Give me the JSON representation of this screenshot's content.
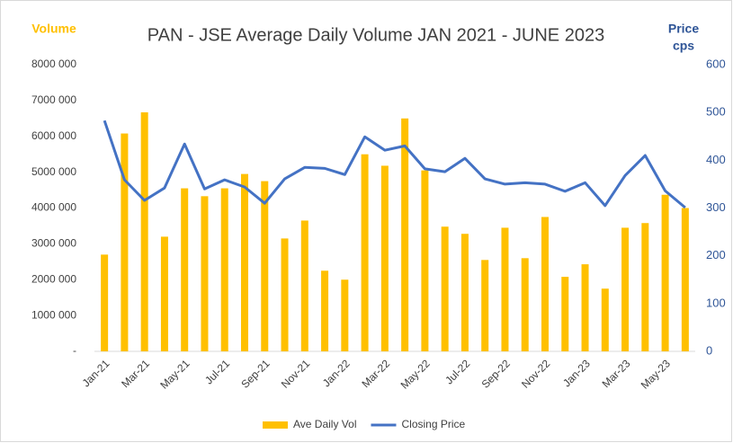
{
  "chart_data": {
    "type": "bar_line",
    "title": "PAN - JSE Average Daily Volume JAN 2021 - JUNE 2023",
    "y_label": "Volume",
    "y2_label": [
      "Price",
      "cps"
    ],
    "categories": [
      "Jan-21",
      null,
      "Mar-21",
      null,
      "May-21",
      null,
      "Jul-21",
      null,
      "Sep-21",
      null,
      "Nov-21",
      null,
      "Jan-22",
      null,
      "Mar-22",
      null,
      "May-22",
      null,
      "Jul-22",
      null,
      "Sep-22",
      null,
      "Nov-22",
      null,
      "Jan-23",
      null,
      "Mar-23",
      null,
      "May-23",
      null
    ],
    "series": [
      {
        "name": "Ave Daily Vol",
        "type": "bar",
        "color": "#ffc000",
        "values": [
          2700000,
          6080000,
          6670000,
          3200000,
          4550000,
          4330000,
          4550000,
          4950000,
          4750000,
          3150000,
          3650000,
          2250000,
          2000000,
          5500000,
          5180000,
          6500000,
          5050000,
          3480000,
          3280000,
          2550000,
          3450000,
          2600000,
          3750000,
          2080000,
          2430000,
          1750000,
          3450000,
          3580000,
          4370000,
          4000000
        ]
      },
      {
        "name": "Closing Price",
        "type": "line",
        "axis": "y2",
        "color": "#4472c4",
        "values": [
          483,
          359,
          316,
          342,
          434,
          340,
          359,
          344,
          310,
          361,
          385,
          383,
          370,
          449,
          421,
          430,
          382,
          376,
          404,
          361,
          350,
          353,
          350,
          335,
          353,
          305,
          368,
          410,
          336,
          301
        ]
      }
    ],
    "ylim": [
      0,
      8000000
    ],
    "yticks": [
      {
        "value": 0,
        "label": "-"
      },
      {
        "value": 1000000,
        "label": "1000 000"
      },
      {
        "value": 2000000,
        "label": "2000 000"
      },
      {
        "value": 3000000,
        "label": "3000 000"
      },
      {
        "value": 4000000,
        "label": "4000 000"
      },
      {
        "value": 5000000,
        "label": "5000 000"
      },
      {
        "value": 6000000,
        "label": "6000 000"
      },
      {
        "value": 7000000,
        "label": "7000 000"
      },
      {
        "value": 8000000,
        "label": "8000 000"
      }
    ],
    "y2lim": [
      0,
      600
    ],
    "y2ticks": [
      0,
      100,
      200,
      300,
      400,
      500,
      600
    ],
    "legend": "bottom"
  }
}
